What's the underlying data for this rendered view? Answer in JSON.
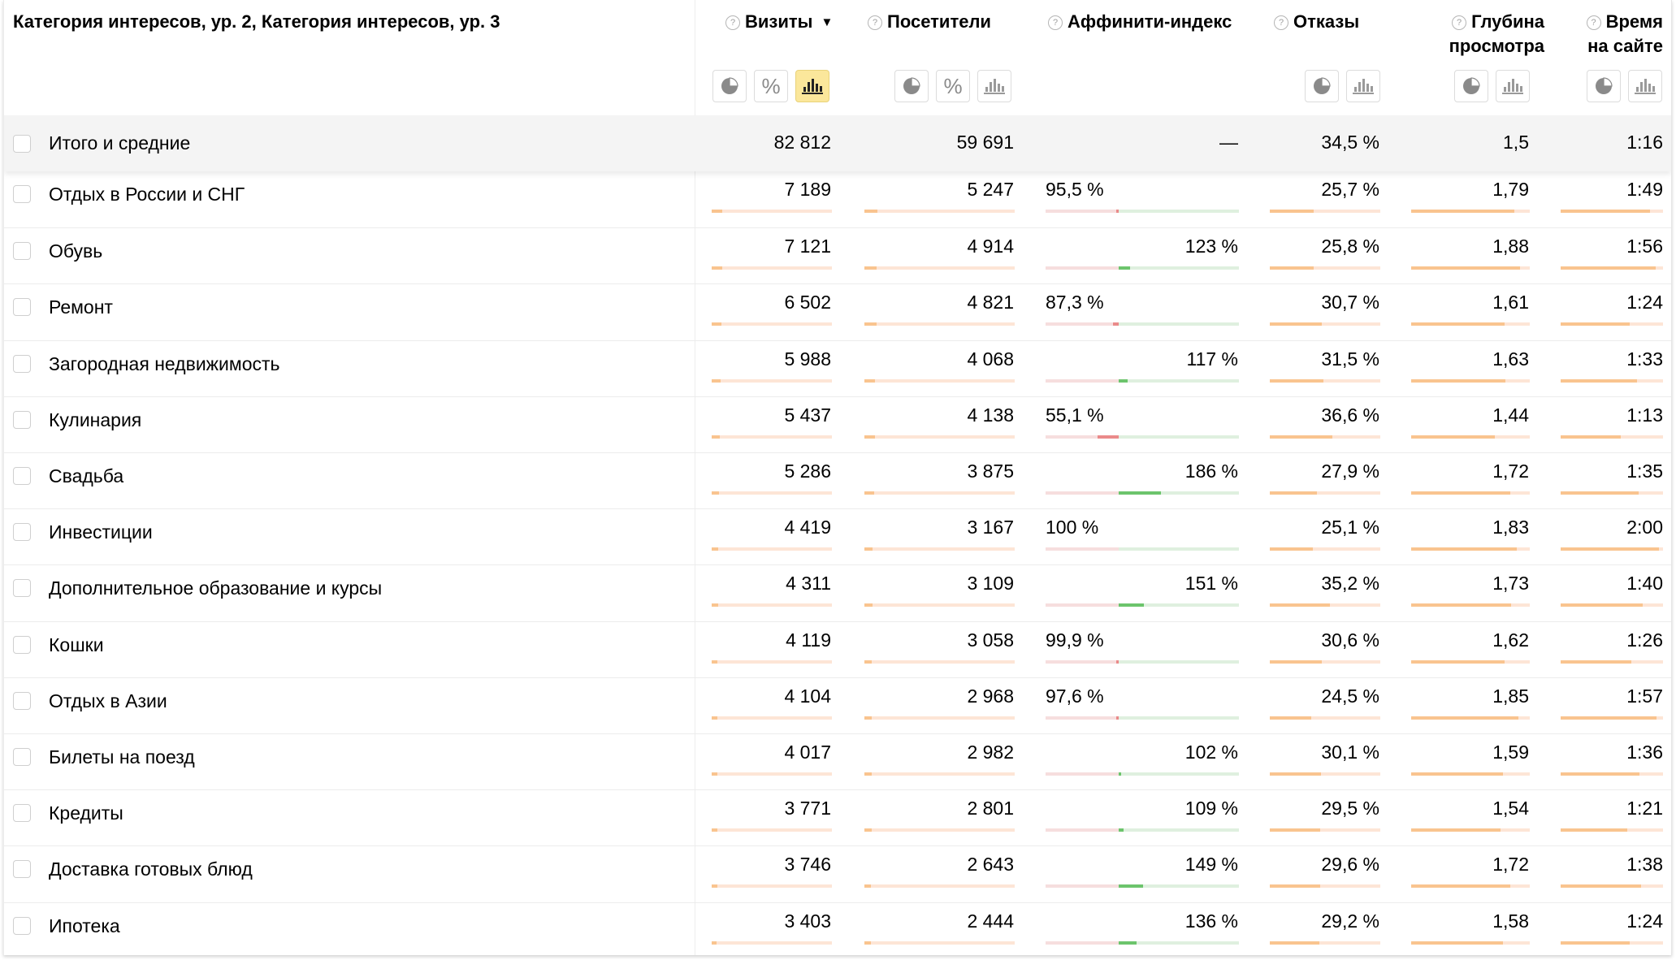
{
  "header": {
    "dimension_title": "Категория интересов, ур. 2, Категория интересов, ур. 3",
    "columns": [
      {
        "key": "visits",
        "label_lines": [
          "Визиты"
        ],
        "sorted": true,
        "sort_icon": "▼"
      },
      {
        "key": "visitors",
        "label_lines": [
          "Посетители"
        ]
      },
      {
        "key": "affinity",
        "label_lines": [
          "Аффинити-индекс"
        ]
      },
      {
        "key": "bounce",
        "label_lines": [
          "Отказы"
        ]
      },
      {
        "key": "depth",
        "label_lines": [
          "Глубина",
          "просмотра"
        ]
      },
      {
        "key": "time",
        "label_lines": [
          "Время",
          "на сайте"
        ]
      }
    ],
    "percent_symbol": "%",
    "help_symbol": "?"
  },
  "colors": {
    "accent_active_bg": "#fbe79b",
    "bar_peach": "#f9c48f",
    "bar_peach_bg": "#fde5d6",
    "bar_green": "#6cc46c",
    "bar_green_bg": "#dff0df",
    "bar_red": "#ea8a8a",
    "bar_red_bg": "#f6dede"
  },
  "totals": {
    "label": "Итого и средние",
    "visits": "82 812",
    "visitors": "59 691",
    "affinity": "—",
    "bounce": "34,5 %",
    "depth": "1,5",
    "time": "1:16"
  },
  "rows": [
    {
      "label": "Отдых в России и СНГ",
      "visits": "7 189",
      "visitors": "5 247",
      "affinity": "95,5 %",
      "affinity_value": 95.5,
      "bounce": "25,7 %",
      "bounce_value": 25.7,
      "depth": "1,79",
      "depth_value": 1.79,
      "time": "1:49",
      "time_value": 109
    },
    {
      "label": "Обувь",
      "visits": "7 121",
      "visitors": "4 914",
      "affinity": "123 %",
      "affinity_value": 123,
      "bounce": "25,8 %",
      "bounce_value": 25.8,
      "depth": "1,88",
      "depth_value": 1.88,
      "time": "1:56",
      "time_value": 116
    },
    {
      "label": "Ремонт",
      "visits": "6 502",
      "visitors": "4 821",
      "affinity": "87,3 %",
      "affinity_value": 87.3,
      "bounce": "30,7 %",
      "bounce_value": 30.7,
      "depth": "1,61",
      "depth_value": 1.61,
      "time": "1:24",
      "time_value": 84
    },
    {
      "label": "Загородная недвижимость",
      "visits": "5 988",
      "visitors": "4 068",
      "affinity": "117 %",
      "affinity_value": 117,
      "bounce": "31,5 %",
      "bounce_value": 31.5,
      "depth": "1,63",
      "depth_value": 1.63,
      "time": "1:33",
      "time_value": 93
    },
    {
      "label": "Кулинария",
      "visits": "5 437",
      "visitors": "4 138",
      "affinity": "55,1 %",
      "affinity_value": 55.1,
      "bounce": "36,6 %",
      "bounce_value": 36.6,
      "depth": "1,44",
      "depth_value": 1.44,
      "time": "1:13",
      "time_value": 73
    },
    {
      "label": "Свадьба",
      "visits": "5 286",
      "visitors": "3 875",
      "affinity": "186 %",
      "affinity_value": 186,
      "bounce": "27,9 %",
      "bounce_value": 27.9,
      "depth": "1,72",
      "depth_value": 1.72,
      "time": "1:35",
      "time_value": 95
    },
    {
      "label": "Инвестиции",
      "visits": "4 419",
      "visitors": "3 167",
      "affinity": "100 %",
      "affinity_value": 100,
      "bounce": "25,1 %",
      "bounce_value": 25.1,
      "depth": "1,83",
      "depth_value": 1.83,
      "time": "2:00",
      "time_value": 120
    },
    {
      "label": "Дополнительное образование и курсы",
      "visits": "4 311",
      "visitors": "3 109",
      "affinity": "151 %",
      "affinity_value": 151,
      "bounce": "35,2 %",
      "bounce_value": 35.2,
      "depth": "1,73",
      "depth_value": 1.73,
      "time": "1:40",
      "time_value": 100
    },
    {
      "label": "Кошки",
      "visits": "4 119",
      "visitors": "3 058",
      "affinity": "99,9 %",
      "affinity_value": 99.9,
      "bounce": "30,6 %",
      "bounce_value": 30.6,
      "depth": "1,62",
      "depth_value": 1.62,
      "time": "1:26",
      "time_value": 86
    },
    {
      "label": "Отдых в Азии",
      "visits": "4 104",
      "visitors": "2 968",
      "affinity": "97,6 %",
      "affinity_value": 97.6,
      "bounce": "24,5 %",
      "bounce_value": 24.5,
      "depth": "1,85",
      "depth_value": 1.85,
      "time": "1:57",
      "time_value": 117
    },
    {
      "label": "Билеты на поезд",
      "visits": "4 017",
      "visitors": "2 982",
      "affinity": "102 %",
      "affinity_value": 102,
      "bounce": "30,1 %",
      "bounce_value": 30.1,
      "depth": "1,59",
      "depth_value": 1.59,
      "time": "1:36",
      "time_value": 96
    },
    {
      "label": "Кредиты",
      "visits": "3 771",
      "visitors": "2 801",
      "affinity": "109 %",
      "affinity_value": 109,
      "bounce": "29,5 %",
      "bounce_value": 29.5,
      "depth": "1,54",
      "depth_value": 1.54,
      "time": "1:21",
      "time_value": 81
    },
    {
      "label": "Доставка готовых блюд",
      "visits": "3 746",
      "visitors": "2 643",
      "affinity": "149 %",
      "affinity_value": 149,
      "bounce": "29,6 %",
      "bounce_value": 29.6,
      "depth": "1,72",
      "depth_value": 1.72,
      "time": "1:38",
      "time_value": 98
    },
    {
      "label": "Ипотека",
      "visits": "3 403",
      "visitors": "2 444",
      "affinity": "136 %",
      "affinity_value": 136,
      "bounce": "29,2 %",
      "bounce_value": 29.2,
      "depth": "1,58",
      "depth_value": 1.58,
      "time": "1:24",
      "time_value": 84
    }
  ]
}
